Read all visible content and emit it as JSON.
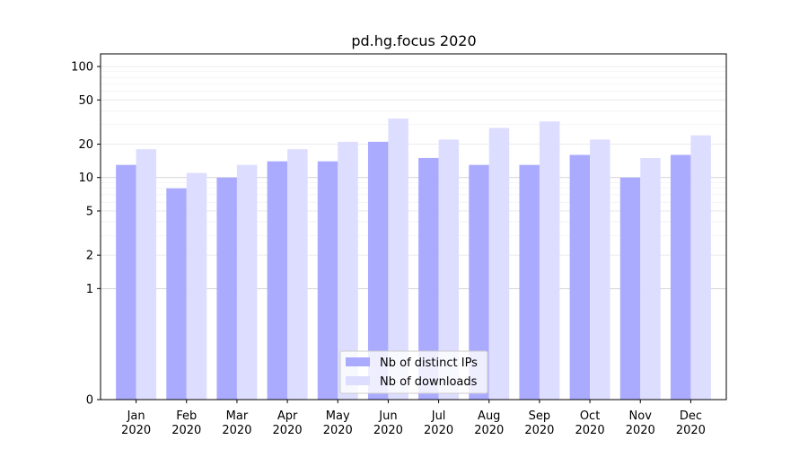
{
  "chart_data": {
    "type": "bar",
    "title": "pd.hg.focus 2020",
    "xlabel": "",
    "ylabel": "",
    "yscale": "symlog",
    "ylim": [
      0,
      130
    ],
    "y_ticks": [
      0,
      1,
      2,
      5,
      10,
      20,
      50,
      100
    ],
    "y_tick_labels": [
      "0",
      "1",
      "2",
      "5",
      "10",
      "20",
      "50",
      "100"
    ],
    "grid": "horizontal",
    "legend_position": "bottom-center",
    "categories": [
      [
        "Jan",
        "2020"
      ],
      [
        "Feb",
        "2020"
      ],
      [
        "Mar",
        "2020"
      ],
      [
        "Apr",
        "2020"
      ],
      [
        "May",
        "2020"
      ],
      [
        "Jun",
        "2020"
      ],
      [
        "Jul",
        "2020"
      ],
      [
        "Aug",
        "2020"
      ],
      [
        "Sep",
        "2020"
      ],
      [
        "Oct",
        "2020"
      ],
      [
        "Nov",
        "2020"
      ],
      [
        "Dec",
        "2020"
      ]
    ],
    "series": [
      {
        "name": "Nb of distinct IPs",
        "color": "#aaaaff",
        "values": [
          13,
          8,
          10,
          14,
          14,
          21,
          15,
          13,
          13,
          16,
          10,
          16
        ]
      },
      {
        "name": "Nb of downloads",
        "color": "#ddddff",
        "values": [
          18,
          11,
          13,
          18,
          21,
          34,
          22,
          28,
          32,
          22,
          15,
          24
        ]
      }
    ]
  }
}
